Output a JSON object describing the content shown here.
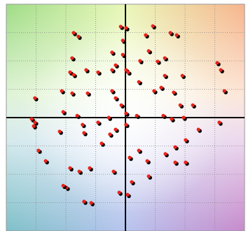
{
  "chart_data": {
    "type": "scatter",
    "x": [
      -1.74,
      -1.58,
      -0.16,
      0.02,
      0.92,
      0.68,
      1.51,
      1.72,
      0.78,
      -1.79,
      -0.45,
      -0.09,
      -0.09,
      -0.33,
      0.02,
      0.49,
      1.08,
      1.32,
      -1.32,
      -1.86,
      -1.74,
      -0.92,
      -0.45,
      0.09,
      0.45,
      1.32,
      1.2,
      1.91,
      3.08,
      3.2,
      -2.14,
      -1.79,
      -1.27,
      -0.45,
      -0.33,
      -0.14,
      0.96,
      1.62,
      1.84,
      2.26,
      3.32,
      -3.04,
      -3.15,
      -3.04,
      -3.08,
      -2.09,
      -1.62,
      -1.44,
      -1.39,
      -0.92,
      -0.56,
      0.02,
      0.02,
      0.38,
      1.27,
      1.55,
      1.95,
      2.45,
      3.15,
      -2.21,
      -0.8,
      -0.52,
      -0.33,
      -2.92,
      -2.68,
      -1.86,
      -1.55,
      -1.2,
      -0.4,
      0.14,
      0.45,
      0.73,
      1.34,
      1.67,
      2.02,
      0.78,
      0.21,
      -1.98,
      -1.39,
      -1.15,
      -0.21,
      0.07,
      2.02,
      1.67,
      -2.09
    ],
    "values": [
      2.99,
      2.86,
      3.21,
      3.16,
      3.23,
      2.91,
      2.99,
      2.91,
      2.35,
      2.1,
      2.3,
      2.72,
      2.22,
      1.85,
      1.68,
      2.0,
      1.98,
      2.1,
      1.68,
      1.6,
      1.51,
      1.6,
      1.68,
      1.6,
      1.26,
      1.48,
      1.06,
      1.48,
      1.93,
      1.68,
      0.94,
      0.86,
      0.86,
      0.94,
      0.69,
      0.44,
      0.94,
      0.89,
      0.44,
      0.44,
      0.94,
      0.69,
      -0.05,
      -0.17,
      -0.3,
      0.2,
      0.07,
      -0.25,
      -0.54,
      -0.17,
      0,
      0.15,
      -0.25,
      0.07,
      0.07,
      -0.05,
      0,
      -0.42,
      -0.17,
      -0.49,
      -0.91,
      -0.59,
      -0.42,
      -1.16,
      -1.53,
      -1.78,
      -1.9,
      -1.78,
      -1.9,
      -1.41,
      -1.16,
      -1.53,
      -1.28,
      -1.58,
      -1.58,
      -2.07,
      -2.27,
      -2.47,
      -2.96,
      -3.01,
      -2.64,
      -2.72,
      -0.79,
      -1.04,
      -2.4
    ],
    "color": "#e8231a",
    "shadow_color": "#000000",
    "xlim": [
      -4,
      4
    ],
    "ylim": [
      -4,
      4
    ],
    "xticks": [
      -3,
      -2,
      -1,
      0,
      1,
      2,
      3
    ],
    "yticks": [
      -3,
      -2,
      -1,
      0,
      1,
      2,
      3
    ],
    "grid": true
  }
}
